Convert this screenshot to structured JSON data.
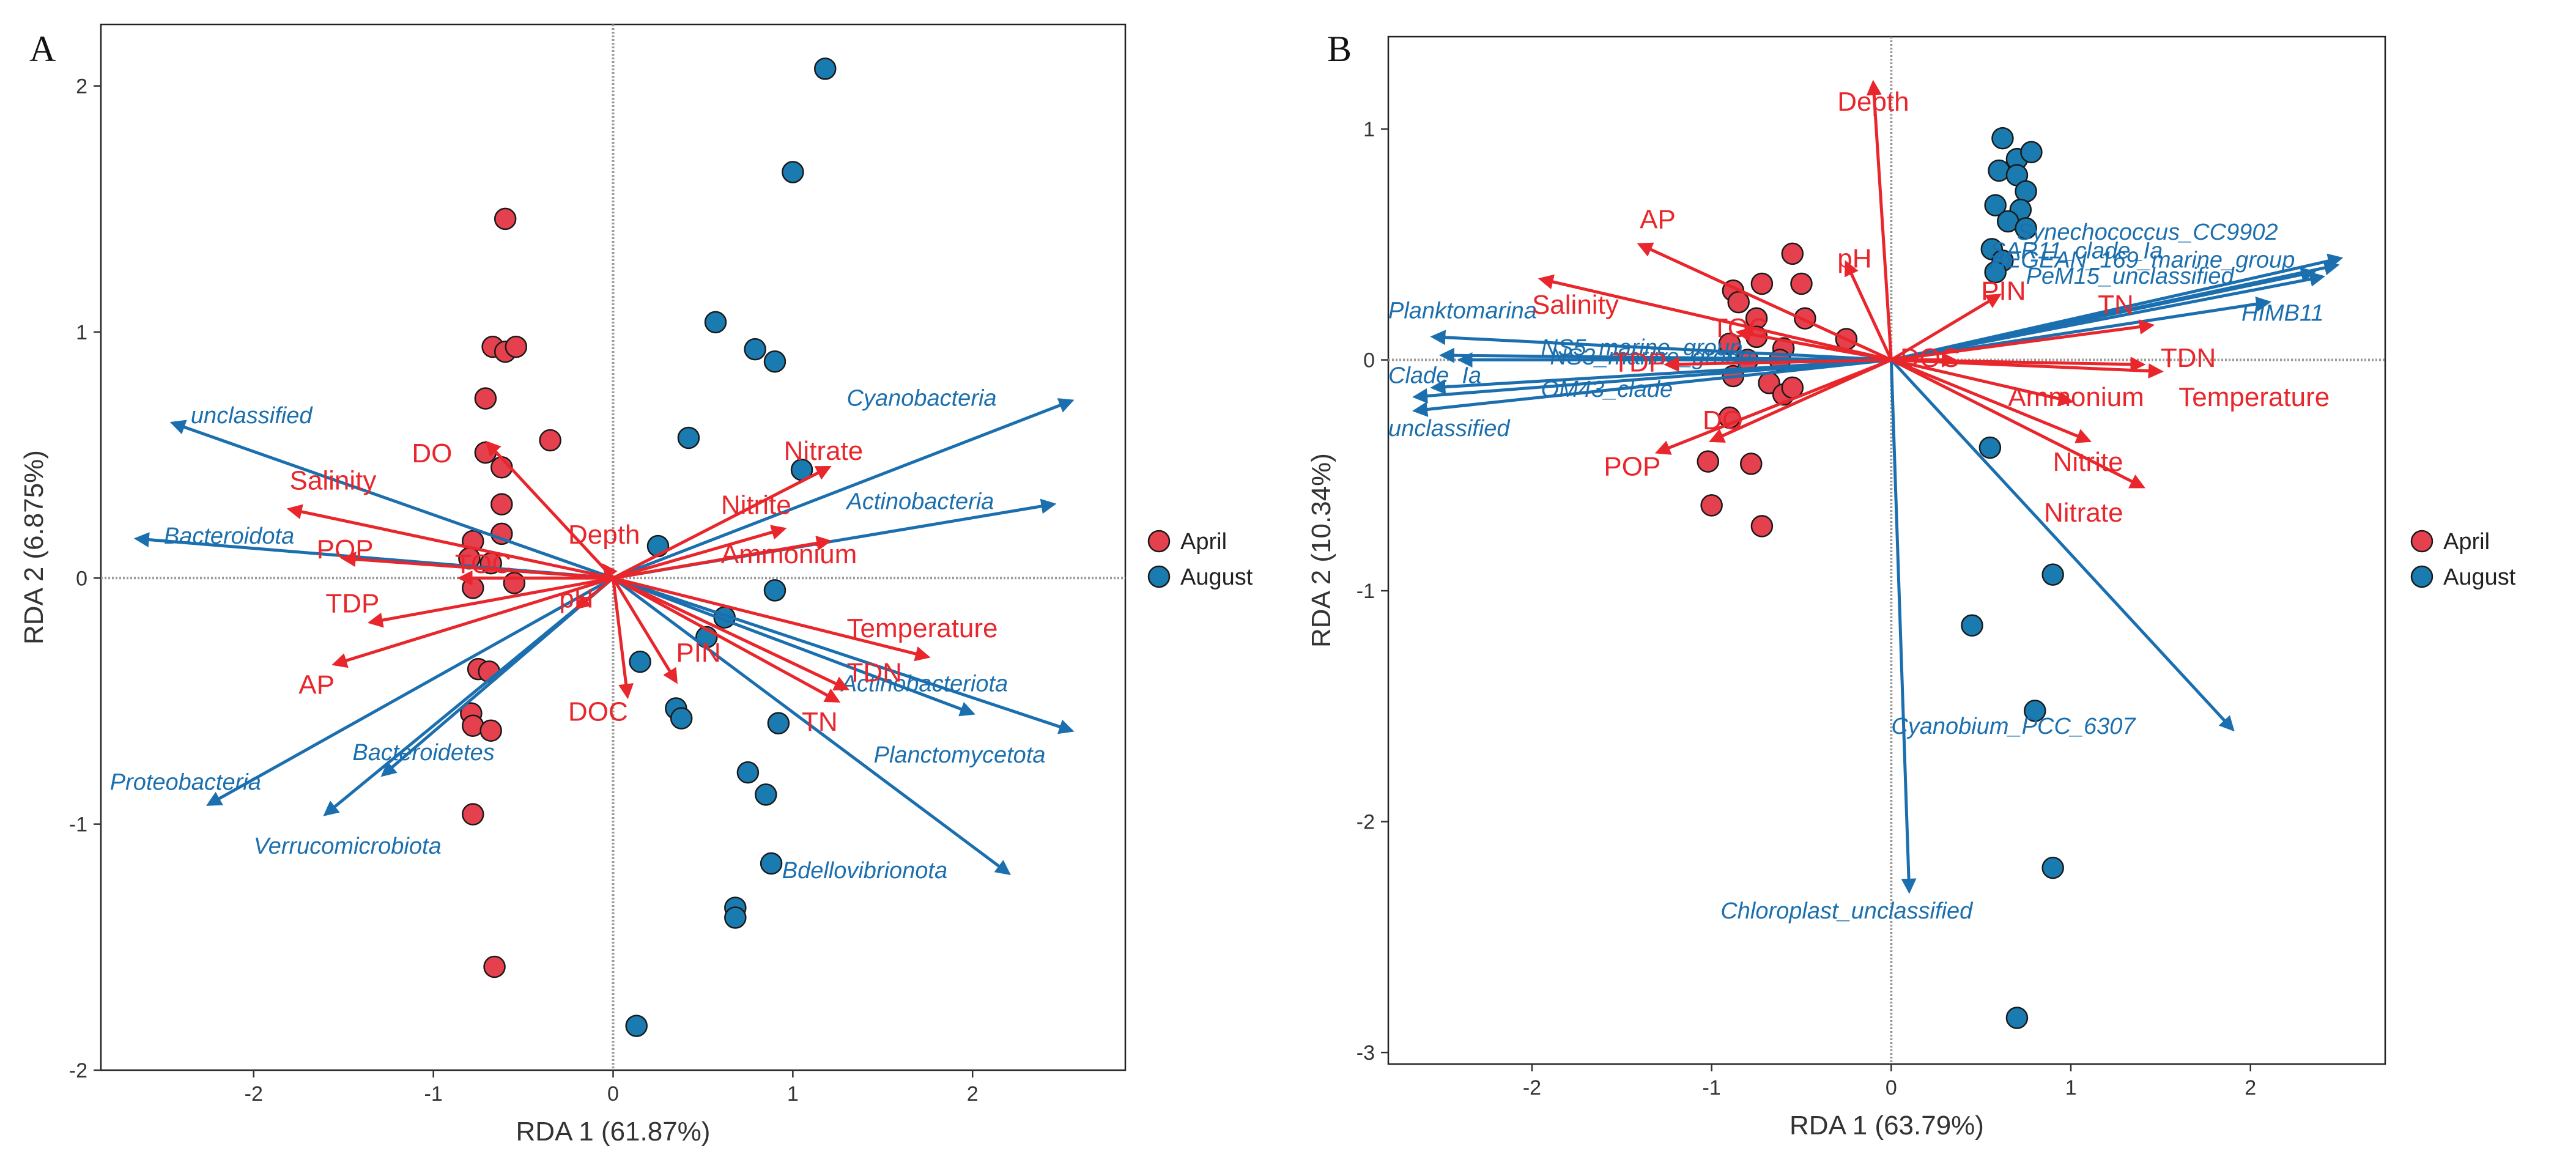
{
  "chart_data": [
    {
      "type": "scatter",
      "panel_label": "A",
      "xlabel": "RDA 1 (61.87%)",
      "ylabel": "RDA 2 (6.875%)",
      "xlim": [
        -2.85,
        2.85
      ],
      "ylim": [
        -2.0,
        2.25
      ],
      "xticks": [
        -2,
        -1,
        0,
        1,
        2
      ],
      "yticks": [
        -2,
        -1,
        0,
        1,
        2
      ],
      "grid": false,
      "legend_position": "right",
      "legend": [
        {
          "label": "April",
          "color": "#e5404e"
        },
        {
          "label": "August",
          "color": "#1a7bb0"
        }
      ],
      "series": [
        {
          "name": "April",
          "color": "#e5404e",
          "points": [
            [
              -0.6,
              1.46
            ],
            [
              -0.67,
              0.94
            ],
            [
              -0.6,
              0.92
            ],
            [
              -0.54,
              0.94
            ],
            [
              -0.71,
              0.73
            ],
            [
              -0.35,
              0.56
            ],
            [
              -0.71,
              0.51
            ],
            [
              -0.62,
              0.45
            ],
            [
              -0.62,
              0.3
            ],
            [
              -0.78,
              0.15
            ],
            [
              -0.62,
              0.18
            ],
            [
              -0.8,
              0.08
            ],
            [
              -0.68,
              0.06
            ],
            [
              -0.55,
              -0.02
            ],
            [
              -0.78,
              -0.04
            ],
            [
              -0.75,
              -0.37
            ],
            [
              -0.69,
              -0.38
            ],
            [
              -0.79,
              -0.55
            ],
            [
              -0.78,
              -0.6
            ],
            [
              -0.68,
              -0.62
            ],
            [
              -0.78,
              -0.96
            ],
            [
              -0.66,
              -1.58
            ]
          ]
        },
        {
          "name": "August",
          "color": "#1a7bb0",
          "points": [
            [
              1.18,
              2.07
            ],
            [
              1.0,
              1.65
            ],
            [
              0.57,
              1.04
            ],
            [
              0.79,
              0.93
            ],
            [
              0.9,
              0.88
            ],
            [
              0.42,
              0.57
            ],
            [
              1.05,
              0.44
            ],
            [
              0.25,
              0.13
            ],
            [
              0.9,
              -0.05
            ],
            [
              0.62,
              -0.16
            ],
            [
              0.52,
              -0.24
            ],
            [
              0.15,
              -0.34
            ],
            [
              0.35,
              -0.53
            ],
            [
              0.38,
              -0.57
            ],
            [
              0.92,
              -0.59
            ],
            [
              0.75,
              -0.79
            ],
            [
              0.85,
              -0.88
            ],
            [
              0.88,
              -1.16
            ],
            [
              0.68,
              -1.34
            ],
            [
              0.68,
              -1.38
            ],
            [
              0.13,
              -1.82
            ]
          ]
        }
      ],
      "species_arrows": [
        {
          "label": "unclassified",
          "x": -2.45,
          "y": 0.63,
          "label_x": -2.35,
          "label_y": 0.63
        },
        {
          "label": "Bacteroidota",
          "x": -2.65,
          "y": 0.16,
          "label_x": -2.5,
          "label_y": 0.14
        },
        {
          "label": "Proteobacteria",
          "x": -2.25,
          "y": -0.92,
          "label_x": -2.8,
          "label_y": -0.86
        },
        {
          "label": "Bacteroidetes",
          "x": -1.28,
          "y": -0.8,
          "label_x": -1.45,
          "label_y": -0.74
        },
        {
          "label": "Verrucomicrobiota",
          "x": -1.6,
          "y": -0.96,
          "label_x": -2.0,
          "label_y": -1.12
        },
        {
          "label": "Cyanobacteria",
          "x": 2.55,
          "y": 0.72,
          "label_x": 1.3,
          "label_y": 0.7
        },
        {
          "label": "Actinobacteria",
          "x": 2.45,
          "y": 0.3,
          "label_x": 1.3,
          "label_y": 0.28
        },
        {
          "label": "Actinobacteriota",
          "x": 2.0,
          "y": -0.55,
          "label_x": 1.27,
          "label_y": -0.46
        },
        {
          "label": "Planctomycetota",
          "x": 2.55,
          "y": -0.62,
          "label_x": 1.45,
          "label_y": -0.75
        },
        {
          "label": "Bdellovibrionota",
          "x": 2.2,
          "y": -1.2,
          "label_x": 0.94,
          "label_y": -1.22
        }
      ],
      "env_arrows": [
        {
          "label": "DO",
          "x": -0.7,
          "y": 0.55,
          "label_x": -1.12,
          "label_y": 0.47
        },
        {
          "label": "Salinity",
          "x": -1.8,
          "y": 0.28,
          "label_x": -1.8,
          "label_y": 0.36
        },
        {
          "label": "POP",
          "x": -1.5,
          "y": 0.08,
          "label_x": -1.65,
          "label_y": 0.08
        },
        {
          "label": "TOC",
          "x": -0.85,
          "y": 0.0,
          "label_x": -0.88,
          "label_y": 0.02
        },
        {
          "label": "TDP",
          "x": -1.35,
          "y": -0.18,
          "label_x": -1.6,
          "label_y": -0.14
        },
        {
          "label": "AP",
          "x": -1.55,
          "y": -0.35,
          "label_x": -1.75,
          "label_y": -0.47
        },
        {
          "label": "Depth",
          "x": -0.05,
          "y": 0.05,
          "label_x": -0.25,
          "label_y": 0.14
        },
        {
          "label": "pH",
          "x": -0.2,
          "y": -0.12,
          "label_x": -0.3,
          "label_y": -0.12
        },
        {
          "label": "DOC",
          "x": 0.08,
          "y": -0.48,
          "label_x": -0.25,
          "label_y": -0.58
        },
        {
          "label": "PIN",
          "x": 0.35,
          "y": -0.42,
          "label_x": 0.35,
          "label_y": -0.34
        },
        {
          "label": "Nitrate",
          "x": 1.2,
          "y": 0.45,
          "label_x": 0.95,
          "label_y": 0.48
        },
        {
          "label": "Nitrite",
          "x": 0.95,
          "y": 0.2,
          "label_x": 0.6,
          "label_y": 0.26
        },
        {
          "label": "Ammonium",
          "x": 1.2,
          "y": 0.15,
          "label_x": 0.6,
          "label_y": 0.06
        },
        {
          "label": "Temperature",
          "x": 1.75,
          "y": -0.32,
          "label_x": 1.3,
          "label_y": -0.24
        },
        {
          "label": "TDN",
          "x": 1.3,
          "y": -0.45,
          "label_x": 1.3,
          "label_y": -0.42
        },
        {
          "label": "TN",
          "x": 1.25,
          "y": -0.5,
          "label_x": 1.05,
          "label_y": -0.62
        }
      ]
    },
    {
      "type": "scatter",
      "panel_label": "B",
      "xlabel": "RDA 1 (63.79%)",
      "ylabel": "RDA 2 (10.34%)",
      "xlim": [
        -2.8,
        2.75
      ],
      "ylim": [
        -3.05,
        1.4
      ],
      "xticks": [
        -2,
        -1,
        0,
        1,
        2
      ],
      "yticks": [
        -3,
        -2,
        -1,
        0,
        1
      ],
      "grid": false,
      "legend_position": "right",
      "legend": [
        {
          "label": "April",
          "color": "#e5404e"
        },
        {
          "label": "August",
          "color": "#1a7bb0"
        }
      ],
      "series": [
        {
          "name": "April",
          "color": "#e5404e",
          "points": [
            [
              -0.55,
              0.46
            ],
            [
              -0.72,
              0.33
            ],
            [
              -0.5,
              0.33
            ],
            [
              -0.88,
              0.3
            ],
            [
              -0.85,
              0.25
            ],
            [
              -0.75,
              0.18
            ],
            [
              -0.48,
              0.18
            ],
            [
              -0.9,
              0.07
            ],
            [
              -0.75,
              0.1
            ],
            [
              -0.6,
              0.05
            ],
            [
              -0.25,
              0.09
            ],
            [
              -0.8,
              0.0
            ],
            [
              -0.62,
              0.0
            ],
            [
              -0.88,
              -0.07
            ],
            [
              -0.68,
              -0.1
            ],
            [
              -0.6,
              -0.15
            ],
            [
              -0.55,
              -0.12
            ],
            [
              -0.9,
              -0.25
            ],
            [
              -1.02,
              -0.44
            ],
            [
              -0.78,
              -0.45
            ],
            [
              -1.0,
              -0.63
            ],
            [
              -0.72,
              -0.72
            ]
          ]
        },
        {
          "name": "August",
          "color": "#1a7bb0",
          "points": [
            [
              0.62,
              0.96
            ],
            [
              0.7,
              0.87
            ],
            [
              0.78,
              0.9
            ],
            [
              0.6,
              0.82
            ],
            [
              0.7,
              0.8
            ],
            [
              0.75,
              0.73
            ],
            [
              0.72,
              0.65
            ],
            [
              0.58,
              0.67
            ],
            [
              0.65,
              0.6
            ],
            [
              0.75,
              0.57
            ],
            [
              0.56,
              0.48
            ],
            [
              0.62,
              0.43
            ],
            [
              0.58,
              0.38
            ],
            [
              0.55,
              -0.38
            ],
            [
              0.9,
              -0.93
            ],
            [
              0.45,
              -1.15
            ],
            [
              0.8,
              -1.52
            ],
            [
              0.9,
              -2.2
            ],
            [
              0.7,
              -2.85
            ]
          ]
        }
      ],
      "species_arrows": [
        {
          "label": "Synechococcus_CC9902",
          "x": 2.5,
          "y": 0.44,
          "label_x": 0.7,
          "label_y": 0.52
        },
        {
          "label": "SAR11_clade_Ia",
          "x": 2.35,
          "y": 0.38,
          "label_x": 0.55,
          "label_y": 0.44
        },
        {
          "label": "AEGEAN_169_marine_group",
          "x": 2.48,
          "y": 0.41,
          "label_x": 0.55,
          "label_y": 0.4
        },
        {
          "label": "PeM15_unclassified",
          "x": 2.4,
          "y": 0.36,
          "label_x": 0.75,
          "label_y": 0.33
        },
        {
          "label": "HIMB11",
          "x": 2.1,
          "y": 0.25,
          "label_x": 1.95,
          "label_y": 0.17
        },
        {
          "label": "Cyanobium_PCC_6307",
          "x": 1.9,
          "y": -1.6,
          "label_x": 0.0,
          "label_y": -1.62
        },
        {
          "label": "Chloroplast_unclassified",
          "x": 0.1,
          "y": -2.3,
          "label_x": -0.95,
          "label_y": -2.42
        },
        {
          "label": "Planktomarina",
          "x": -2.55,
          "y": 0.1,
          "label_x": -2.8,
          "label_y": 0.18
        },
        {
          "label": "NS5_marine_group",
          "x": -2.5,
          "y": 0.02,
          "label_x": -1.95,
          "label_y": 0.02
        },
        {
          "label": "NS3_marine_group",
          "x": -2.4,
          "y": 0.0,
          "label_x": -1.9,
          "label_y": -0.02
        },
        {
          "label": "Clade_Ia",
          "x": -2.65,
          "y": -0.16,
          "label_x": -2.8,
          "label_y": -0.1
        },
        {
          "label": "OM43_clade",
          "x": -2.55,
          "y": -0.12,
          "label_x": -1.95,
          "label_y": -0.16
        },
        {
          "label": "unclassified",
          "x": -2.65,
          "y": -0.22,
          "label_x": -2.8,
          "label_y": -0.33
        }
      ],
      "env_arrows": [
        {
          "label": "Depth",
          "x": -0.1,
          "y": 1.2,
          "label_x": -0.3,
          "label_y": 1.08
        },
        {
          "label": "AP",
          "x": -1.4,
          "y": 0.5,
          "label_x": -1.4,
          "label_y": 0.57
        },
        {
          "label": "pH",
          "x": -0.25,
          "y": 0.42,
          "label_x": -0.3,
          "label_y": 0.4
        },
        {
          "label": "Salinity",
          "x": -1.95,
          "y": 0.35,
          "label_x": -2.0,
          "label_y": 0.2
        },
        {
          "label": "TOC",
          "x": -0.85,
          "y": 0.12,
          "label_x": -1.0,
          "label_y": 0.1
        },
        {
          "label": "TDP",
          "x": -1.25,
          "y": -0.02,
          "label_x": -1.55,
          "label_y": -0.05
        },
        {
          "label": "DO",
          "x": -1.0,
          "y": -0.35,
          "label_x": -1.05,
          "label_y": -0.3
        },
        {
          "label": "POP",
          "x": -1.3,
          "y": -0.4,
          "label_x": -1.6,
          "label_y": -0.5
        },
        {
          "label": "PIN",
          "x": 0.6,
          "y": 0.28,
          "label_x": 0.5,
          "label_y": 0.26
        },
        {
          "label": "TN",
          "x": 1.45,
          "y": 0.15,
          "label_x": 1.15,
          "label_y": 0.2
        },
        {
          "label": "DOC",
          "x": 0.35,
          "y": 0.0,
          "label_x": 0.05,
          "label_y": -0.03
        },
        {
          "label": "TDN",
          "x": 1.5,
          "y": -0.05,
          "label_x": 1.5,
          "label_y": -0.03
        },
        {
          "label": "Ammonium",
          "x": 1.0,
          "y": -0.18,
          "label_x": 0.65,
          "label_y": -0.2
        },
        {
          "label": "Temperature",
          "x": 1.4,
          "y": -0.02,
          "label_x": 1.6,
          "label_y": -0.2
        },
        {
          "label": "Nitrite",
          "x": 1.1,
          "y": -0.35,
          "label_x": 0.9,
          "label_y": -0.48
        },
        {
          "label": "Nitrate",
          "x": 1.4,
          "y": -0.55,
          "label_x": 0.85,
          "label_y": -0.7
        }
      ]
    }
  ]
}
